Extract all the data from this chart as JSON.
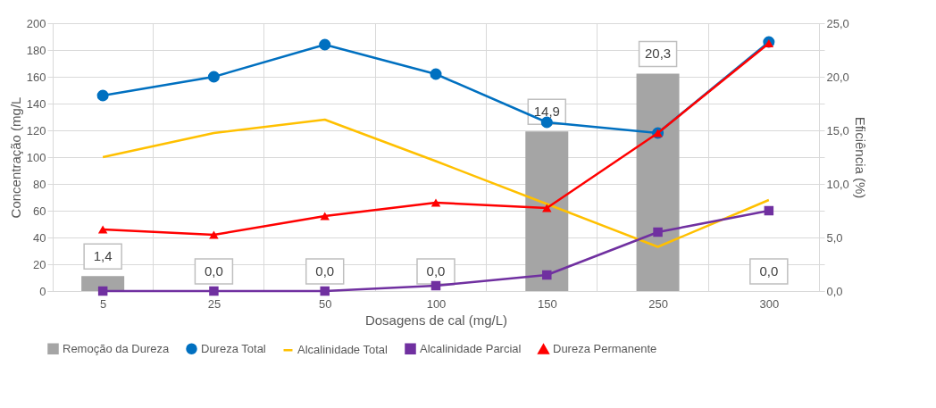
{
  "chart_data": {
    "type": "line",
    "xlabel": "Dosagens de cal (mg/L)",
    "ylabel": "Concentração (mg/L",
    "y2label": "Eficiência (%)",
    "categories": [
      "5",
      "25",
      "50",
      "100",
      "150",
      "250",
      "300"
    ],
    "series": [
      {
        "name": "Remoção da Dureza",
        "type": "bar",
        "axis": "y2",
        "color": "#a5a5a5",
        "values": [
          1.4,
          0.0,
          0.0,
          0.0,
          14.9,
          20.3,
          0.0
        ],
        "value_labels": [
          "1,4",
          "0,0",
          "0,0",
          "0,0",
          "14,9",
          "20,3",
          "0,0"
        ]
      },
      {
        "name": "Dureza Total",
        "color": "#0070c0",
        "marker": "circle",
        "values": [
          146,
          160,
          184,
          162,
          126,
          118,
          186
        ]
      },
      {
        "name": "Alcalinidade Total",
        "color": "#ffc000",
        "marker": "none",
        "values": [
          100,
          118,
          128,
          97,
          65,
          33,
          68
        ]
      },
      {
        "name": "Alcalinidade Parcial",
        "color": "#7030a0",
        "marker": "square",
        "values": [
          0,
          0,
          0,
          4,
          12,
          44,
          60
        ]
      },
      {
        "name": "Dureza Permanente",
        "color": "#ff0000",
        "marker": "triangle",
        "values": [
          46,
          42,
          56,
          66,
          62,
          118,
          185
        ]
      }
    ],
    "ylim": [
      0,
      200
    ],
    "yticks": [
      0,
      20,
      40,
      60,
      80,
      100,
      120,
      140,
      160,
      180,
      200
    ],
    "y2lim": [
      0,
      25
    ],
    "y2ticks": [
      {
        "value": 0,
        "label": "0,0"
      },
      {
        "value": 5,
        "label": "5,0"
      },
      {
        "value": 10,
        "label": "10,0"
      },
      {
        "value": 15,
        "label": "15,0"
      },
      {
        "value": 20,
        "label": "20,0"
      },
      {
        "value": 25,
        "label": "25,0"
      }
    ],
    "grid": true,
    "legend": "bottom"
  }
}
